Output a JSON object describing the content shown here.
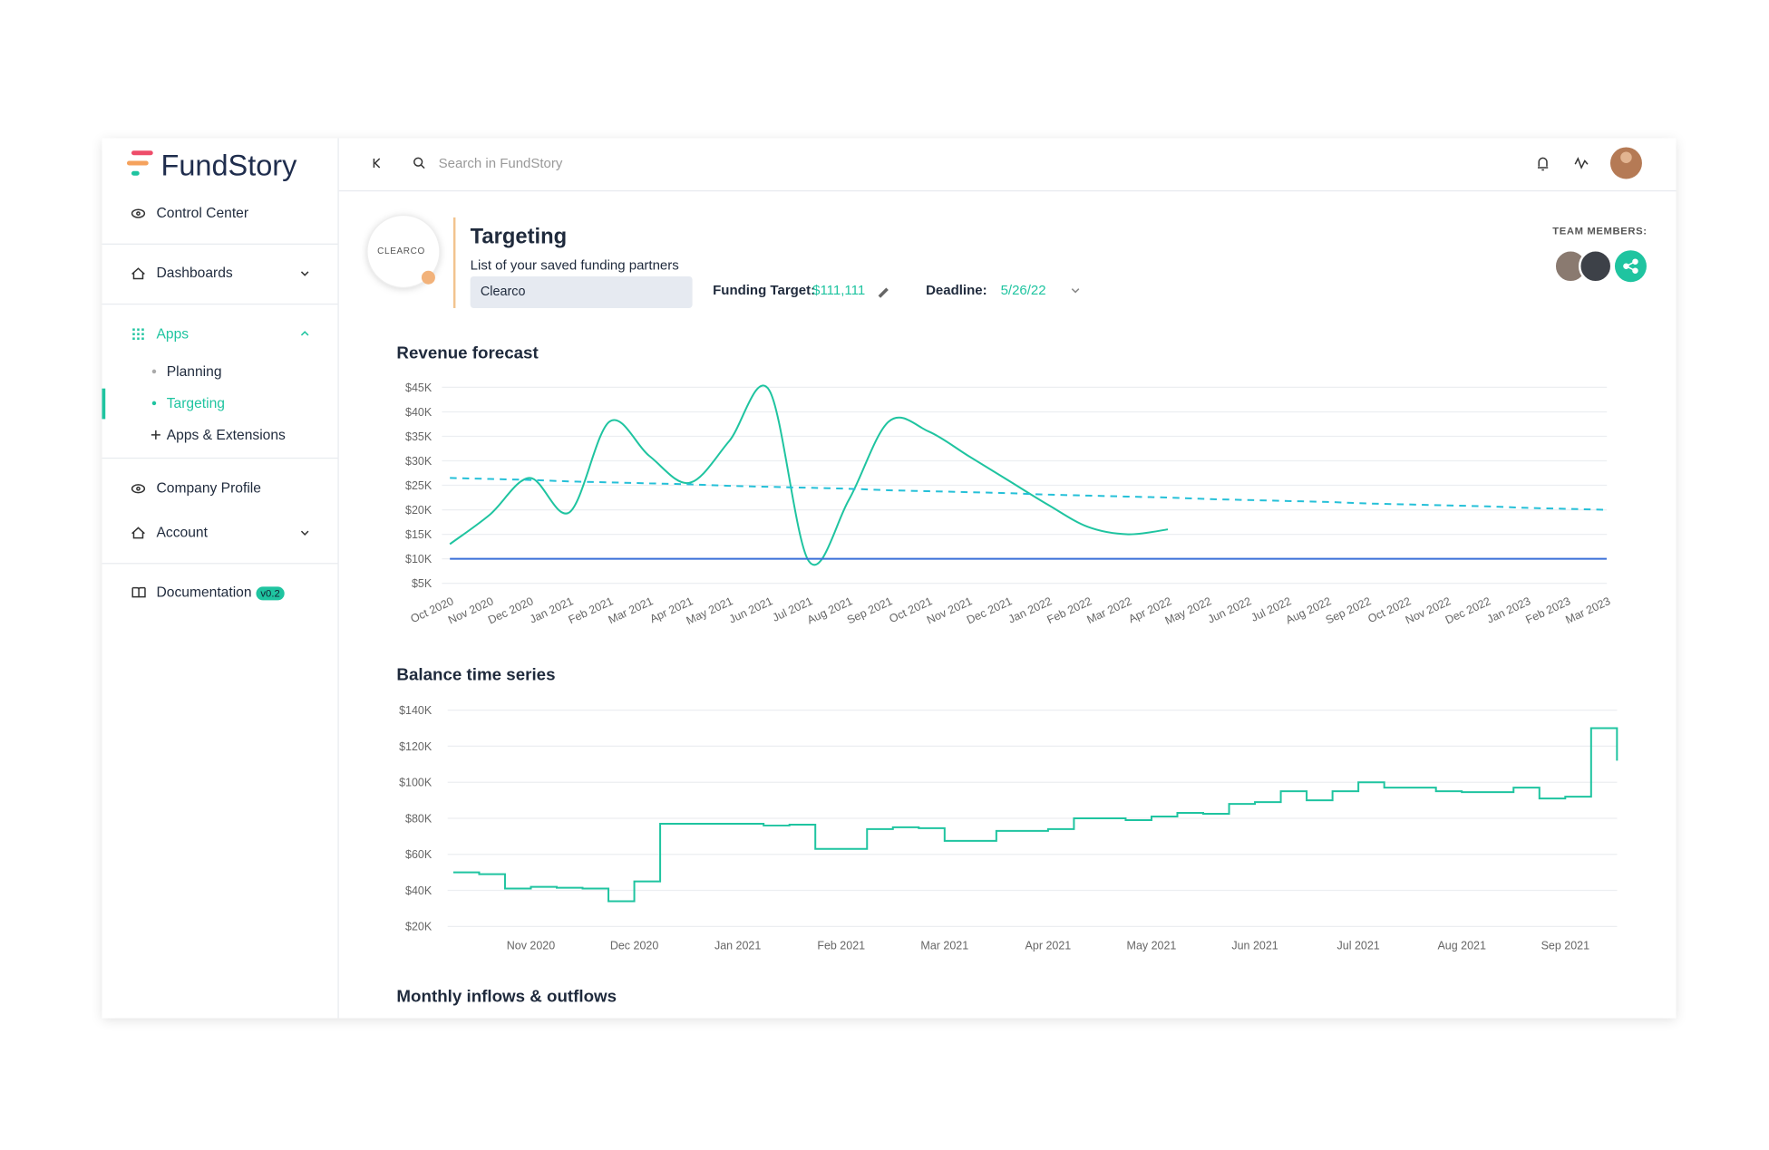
{
  "sidebar": {
    "brand": "FundStory",
    "control_center": "Control Center",
    "dashboards": "Dashboards",
    "apps": "Apps",
    "apps_children": [
      "Planning",
      "Targeting",
      "Apps & Extensions"
    ],
    "company_profile": "Company Profile",
    "account": "Account",
    "documentation": "Documentation",
    "documentation_badge": "v0.2"
  },
  "topbar": {
    "search_placeholder": "Search in FundStory"
  },
  "header": {
    "logo_text": "CLEARCO",
    "title": "Targeting",
    "subtitle": "List of your saved funding partners",
    "select": "Clearco",
    "funding_target_label": "Funding Target:",
    "funding_target_value": "$111,111",
    "deadline_label": "Deadline:",
    "deadline_value": "5/26/22",
    "team_label": "TEAM MEMBERS:"
  },
  "chart_data": [
    {
      "type": "line",
      "title": "Revenue forecast",
      "smooth": true,
      "grid": true,
      "categories": [
        "Oct 2020",
        "Nov 2020",
        "Dec 2020",
        "Jan 2021",
        "Feb 2021",
        "Mar 2021",
        "Apr 2021",
        "May 2021",
        "Jun 2021",
        "Jul 2021",
        "Aug 2021",
        "Sep 2021",
        "Oct 2021",
        "Nov 2021",
        "Dec 2021",
        "Jan 2022",
        "Feb 2022",
        "Mar 2022",
        "Apr 2022",
        "May 2022",
        "Jun 2022",
        "Jul 2022",
        "Aug 2022",
        "Sep 2022",
        "Oct 2022",
        "Nov 2022",
        "Dec 2022",
        "Jan 2023",
        "Feb 2023",
        "Mar 2023"
      ],
      "series": [
        {
          "color": "#1fc4a0",
          "style": "solid",
          "values": [
            13000,
            19000,
            26500,
            19500,
            38000,
            31000,
            25500,
            34000,
            44500,
            9500,
            22000,
            38000,
            36000,
            31000,
            26000,
            21000,
            16500,
            15000,
            16000,
            null,
            null,
            null,
            null,
            null,
            null,
            null,
            null,
            null,
            null,
            null
          ]
        },
        {
          "color": "#25c0d8",
          "style": "dashed",
          "values": [
            26500,
            26300,
            26100,
            25800,
            25600,
            25400,
            25200,
            24900,
            24700,
            24500,
            24300,
            24000,
            23800,
            23600,
            23400,
            23100,
            22900,
            22700,
            22500,
            22200,
            22000,
            21800,
            21600,
            21300,
            21100,
            20900,
            20700,
            20400,
            20200,
            20000
          ]
        },
        {
          "color": "#3a6fd8",
          "style": "solid",
          "values": [
            10000,
            10000,
            10000,
            10000,
            10000,
            10000,
            10000,
            10000,
            10000,
            10000,
            10000,
            10000,
            10000,
            10000,
            10000,
            10000,
            10000,
            10000,
            10000,
            10000,
            10000,
            10000,
            10000,
            10000,
            10000,
            10000,
            10000,
            10000,
            10000,
            10000
          ]
        }
      ],
      "ylim": [
        5000,
        45000
      ],
      "yticks": [
        {
          "value": 5000,
          "label": "$5K"
        },
        {
          "value": 10000,
          "label": "$10K"
        },
        {
          "value": 15000,
          "label": "$15K"
        },
        {
          "value": 20000,
          "label": "$20K"
        },
        {
          "value": 25000,
          "label": "$25K"
        },
        {
          "value": 30000,
          "label": "$30K"
        },
        {
          "value": 35000,
          "label": "$35K"
        },
        {
          "value": 40000,
          "label": "$40K"
        },
        {
          "value": 45000,
          "label": "$45K"
        }
      ]
    },
    {
      "type": "line",
      "title": "Balance time series",
      "step": true,
      "grid": true,
      "categories": [
        null,
        null,
        null,
        "Nov 2020",
        null,
        null,
        null,
        "Dec 2020",
        null,
        null,
        null,
        "Jan 2021",
        null,
        null,
        null,
        "Feb 2021",
        null,
        null,
        null,
        "Mar 2021",
        null,
        null,
        null,
        "Apr 2021",
        null,
        null,
        null,
        "May 2021",
        null,
        null,
        null,
        "Jun 2021",
        null,
        null,
        null,
        "Jul 2021",
        null,
        null,
        null,
        "Aug 2021",
        null,
        null,
        null,
        "Sep 2021",
        null,
        null
      ],
      "series": [
        {
          "color": "#1fc4a0",
          "style": "solid",
          "values": [
            50000,
            49000,
            41000,
            42000,
            41500,
            41000,
            34000,
            45000,
            77000,
            77000,
            77000,
            77000,
            76000,
            76500,
            63000,
            63000,
            74000,
            75000,
            74500,
            67500,
            67500,
            73000,
            73000,
            74000,
            80000,
            80000,
            79000,
            81000,
            83000,
            82500,
            88000,
            89000,
            95000,
            90000,
            95000,
            100000,
            97000,
            97000,
            95000,
            94500,
            94500,
            97000,
            91000,
            92000,
            130000,
            112000
          ]
        }
      ],
      "ylim": [
        20000,
        140000
      ],
      "yticks": [
        {
          "value": 20000,
          "label": "$20K"
        },
        {
          "value": 40000,
          "label": "$40K"
        },
        {
          "value": 60000,
          "label": "$60K"
        },
        {
          "value": 80000,
          "label": "$80K"
        },
        {
          "value": 100000,
          "label": "$100K"
        },
        {
          "value": 120000,
          "label": "$120K"
        },
        {
          "value": 140000,
          "label": "$140K"
        }
      ]
    }
  ],
  "next_section": "Monthly inflows & outflows"
}
